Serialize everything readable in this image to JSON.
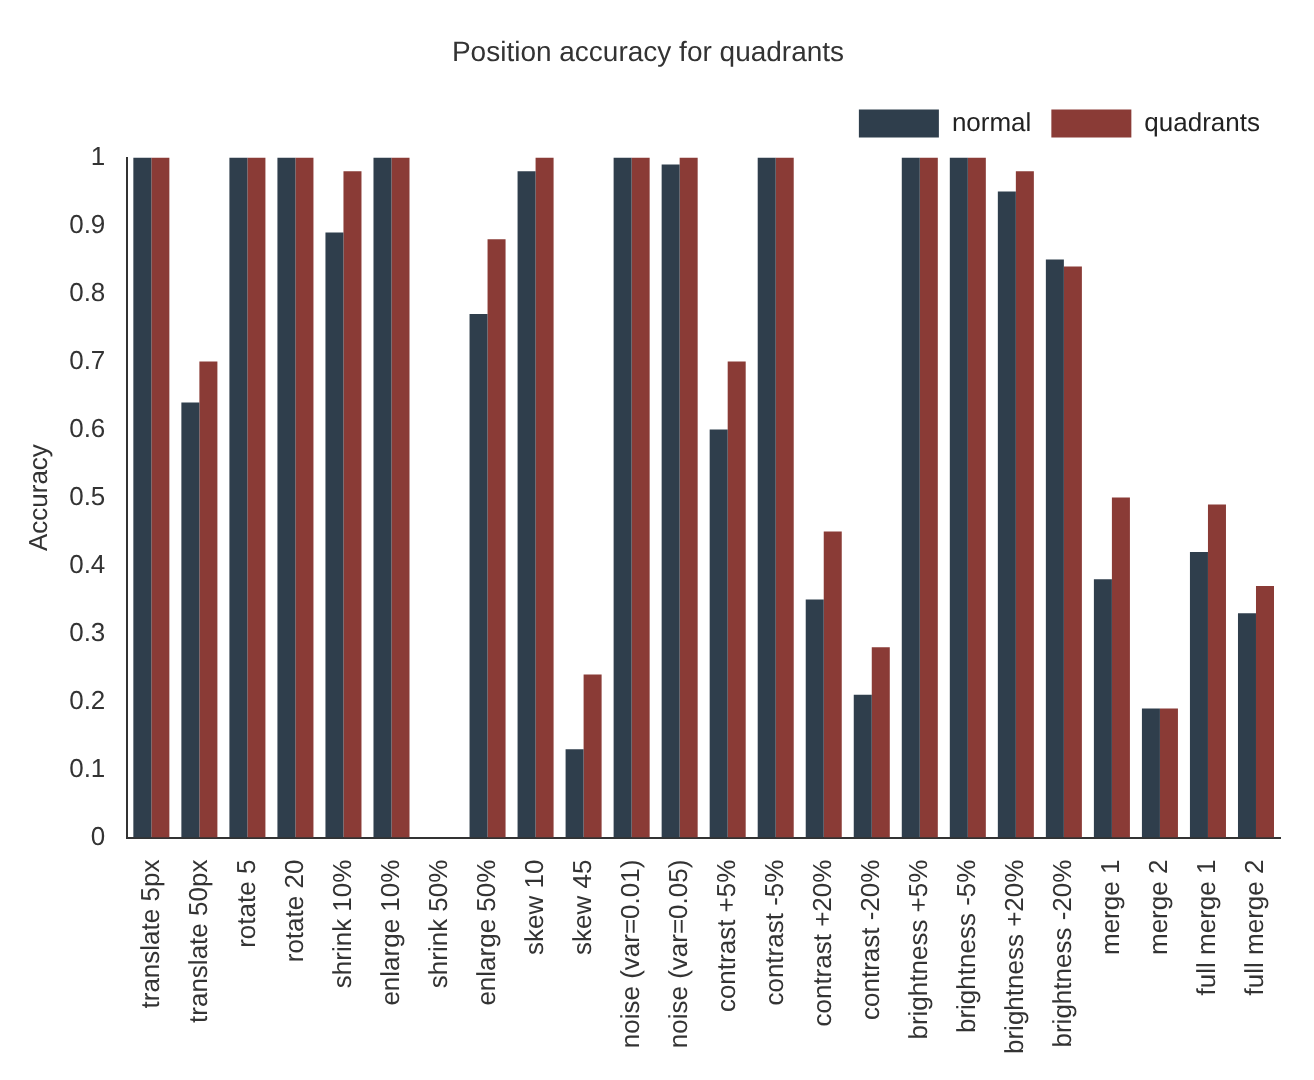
{
  "chart_data": {
    "type": "bar",
    "title": "Position accuracy for quadrants",
    "ylabel": "Accuracy",
    "categories": [
      "translate 5px",
      "translate 50px",
      "rotate 5",
      "rotate 20",
      "shrink 10%",
      "enlarge 10%",
      "shrink 50%",
      "enlarge 50%",
      "skew 10",
      "skew 45",
      "noise (var=0.01)",
      "noise (var=0.05)",
      "contrast +5%",
      "contrast -5%",
      "contrast +20%",
      "contrast -20%",
      "brightness +5%",
      "brightness -5%",
      "brightness +20%",
      "brightness -20%",
      "merge 1",
      "merge 2",
      "full merge 1",
      "full merge 2"
    ],
    "series": [
      {
        "name": "normal",
        "color": "#2f3e4c",
        "values": [
          1,
          0.64,
          1,
          1,
          0.89,
          1,
          0,
          0.77,
          0.98,
          0.13,
          1,
          0.99,
          0.6,
          1,
          0.35,
          0.21,
          1,
          1,
          0.95,
          0.85,
          0.38,
          0.19,
          0.42,
          0.33
        ]
      },
      {
        "name": "quadrants",
        "color": "#8a3b36",
        "values": [
          1,
          0.7,
          1,
          1,
          0.98,
          1,
          0,
          0.88,
          1,
          0.24,
          1,
          1,
          0.7,
          1,
          0.45,
          0.28,
          1,
          1,
          0.98,
          0.84,
          0.5,
          0.19,
          0.49,
          0.37
        ]
      }
    ],
    "ylim": [
      0,
      1
    ],
    "yticks": [
      0,
      0.1,
      0.2,
      0.3,
      0.4,
      0.5,
      0.6,
      0.7,
      0.8,
      0.9,
      1
    ],
    "grid": false,
    "legend": "top right"
  }
}
